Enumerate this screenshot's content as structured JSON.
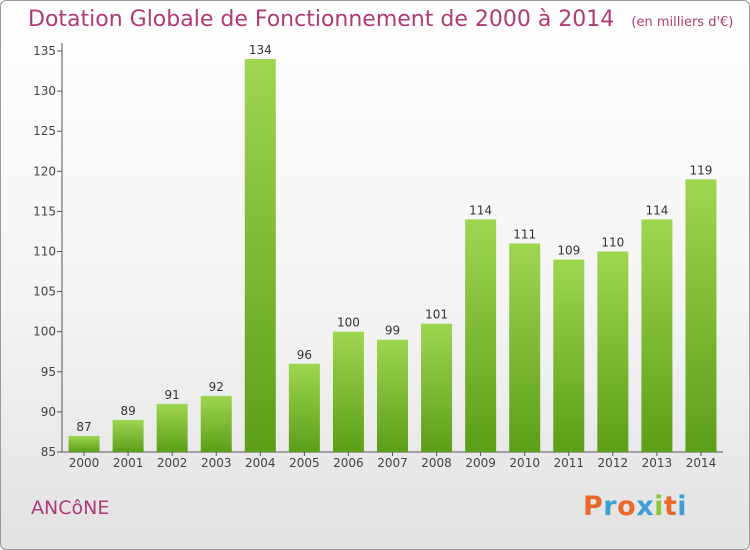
{
  "header": {
    "title": "Dotation Globale de Fonctionnement de 2000 à 2014",
    "unit_note": "(en milliers d'€)"
  },
  "footer": {
    "commune": "ANCôNE",
    "logo": [
      "P",
      "r",
      "o",
      "x",
      "i",
      "t",
      "i"
    ]
  },
  "colors": {
    "title": "#b03a78",
    "bar_top": "#9fd651",
    "bar_bottom": "#5c9e18",
    "logo": [
      "#e8692b",
      "#3f9fd3",
      "#e8692b",
      "#3f9fd3",
      "#8cc63f",
      "#e8692b",
      "#3f9fd3"
    ]
  },
  "chart_data": {
    "type": "bar",
    "title": "Dotation Globale de Fonctionnement de 2000 à 2014",
    "xlabel": "",
    "ylabel": "",
    "categories": [
      "2000",
      "2001",
      "2002",
      "2003",
      "2004",
      "2005",
      "2006",
      "2007",
      "2008",
      "2009",
      "2010",
      "2011",
      "2012",
      "2013",
      "2014"
    ],
    "values": [
      87,
      89,
      91,
      92,
      134,
      96,
      100,
      99,
      101,
      114,
      111,
      109,
      110,
      114,
      119
    ],
    "ylim": [
      85,
      135
    ],
    "yticks": [
      85,
      90,
      95,
      100,
      105,
      110,
      115,
      120,
      125,
      130,
      135
    ],
    "grid": false,
    "data_labels": true
  }
}
